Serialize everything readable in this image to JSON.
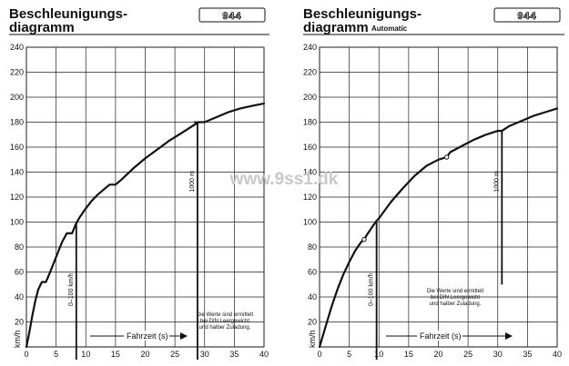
{
  "watermark": "www.9ss1.dk",
  "charts": [
    {
      "title_line1": "Beschleunigungs-",
      "title_line2": "diagramm",
      "subtitle": "",
      "logo": "944",
      "ylabel": "km/h",
      "time_axis_label": "Fahrzeit (s)",
      "accel_label": "0–100 km/h",
      "dist_label": "1000 m",
      "note_lines": [
        "Die Werte sind ermittelt",
        "bei DIN Leergewicht",
        "und halber Zuladung."
      ]
    },
    {
      "title_line1": "Beschleunigungs-",
      "title_line2": "diagramm",
      "subtitle": "Automatic",
      "logo": "944",
      "ylabel": "km/h",
      "time_axis_label": "Fahrzeit (s)",
      "accel_label": "0–100 km/h",
      "dist_label": "1000 m",
      "note_lines": [
        "Die Werte sind ermittelt",
        "bei DIN Leergewicht",
        "und halber Zuladung."
      ]
    }
  ],
  "chart_data": [
    {
      "type": "line",
      "title": "Beschleunigungsdiagramm",
      "xlabel": "Fahrzeit (s)",
      "ylabel": "km/h",
      "xlim": [
        0,
        40
      ],
      "ylim": [
        0,
        240
      ],
      "xticks": [
        0,
        5,
        10,
        15,
        20,
        25,
        30,
        35,
        40
      ],
      "yticks": [
        20,
        40,
        60,
        80,
        100,
        120,
        140,
        160,
        180,
        200,
        220,
        240
      ],
      "grid": true,
      "series": [
        {
          "x": [
            0,
            0.5,
            1,
            1.5,
            2,
            2.6,
            3,
            3.3,
            4,
            5,
            6,
            6.8,
            7.3,
            7.7,
            8.2,
            8.5,
            9,
            10,
            11,
            12,
            13,
            14,
            15,
            16,
            18,
            20,
            22,
            24,
            26,
            28,
            29,
            30,
            32,
            34,
            36,
            38,
            40
          ],
          "y": [
            0,
            12,
            25,
            37,
            46,
            52,
            52,
            52,
            60,
            72,
            84,
            91,
            91,
            91,
            97,
            100,
            104,
            111,
            117,
            122,
            126,
            130,
            130,
            134,
            143,
            151,
            158,
            165,
            171,
            177,
            180,
            180,
            184,
            188,
            191,
            193,
            195
          ]
        }
      ],
      "annotations": [
        {
          "text": "0–100 km/h",
          "x": 8.4
        },
        {
          "text": "1000 m",
          "x": 28.8
        },
        {
          "text": "Die Werte sind ermittelt bei DIN Leergewicht und halber Zuladung."
        }
      ]
    },
    {
      "type": "line",
      "title": "Beschleunigungsdiagramm Automatic",
      "xlabel": "Fahrzeit (s)",
      "ylabel": "km/h",
      "xlim": [
        0,
        40
      ],
      "ylim": [
        0,
        240
      ],
      "xticks": [
        0,
        5,
        10,
        15,
        20,
        25,
        30,
        35,
        40
      ],
      "yticks": [
        20,
        40,
        60,
        80,
        100,
        120,
        140,
        160,
        180,
        200,
        220,
        240
      ],
      "grid": true,
      "series": [
        {
          "x": [
            0,
            1,
            2,
            3,
            4,
            5,
            6,
            7,
            7.5,
            8,
            9,
            9.6,
            10,
            12,
            14,
            16,
            18,
            20,
            21.4,
            22,
            24,
            26,
            28,
            30,
            30.7,
            32,
            34,
            36,
            38,
            40
          ],
          "y": [
            0,
            16,
            32,
            46,
            58,
            68,
            77,
            84,
            86,
            90,
            97,
            101,
            103,
            116,
            127,
            137,
            145,
            150,
            152,
            156,
            161,
            166,
            170,
            173,
            173,
            177,
            181,
            185,
            188,
            191
          ]
        }
      ],
      "points": [
        {
          "x": 7.5,
          "y": 86
        },
        {
          "x": 21.4,
          "y": 152
        }
      ],
      "annotations": [
        {
          "text": "0–100 km/h",
          "x": 9.6
        },
        {
          "text": "1000 m",
          "x": 30.7
        },
        {
          "text": "Die Werte sind ermittelt bei DIN Leergewicht und halber Zuladung."
        }
      ]
    }
  ]
}
